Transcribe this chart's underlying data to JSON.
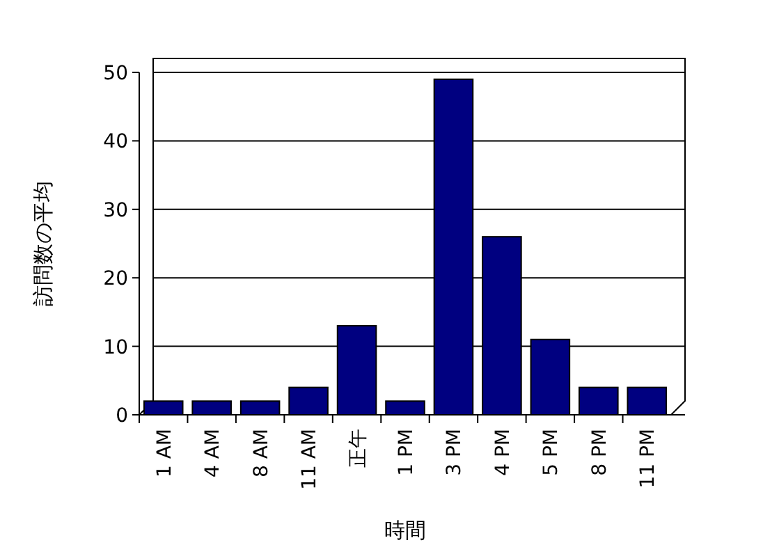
{
  "chart_data": {
    "type": "bar",
    "xlabel": "時間",
    "ylabel": "訪問数の平均",
    "categories": [
      "1 AM",
      "4 AM",
      "8 AM",
      "11 AM",
      "正午",
      "1 PM",
      "3 PM",
      "4 PM",
      "5 PM",
      "8 PM",
      "11 PM"
    ],
    "values": [
      2,
      2,
      2,
      4,
      13,
      2,
      49,
      26,
      11,
      4,
      4
    ],
    "color": "#000080",
    "ylim": [
      0,
      50
    ],
    "yticks": [
      0,
      10,
      20,
      30,
      40,
      50
    ],
    "grid": "y"
  }
}
